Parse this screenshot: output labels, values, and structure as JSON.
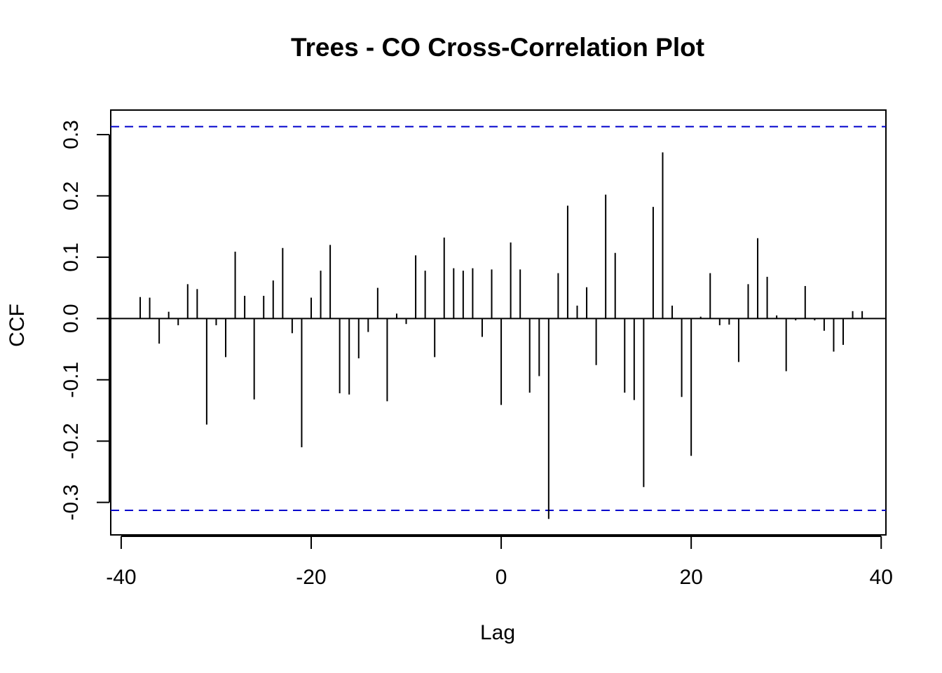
{
  "chart_data": {
    "type": "bar",
    "title": "Trees - CO Cross-Correlation Plot",
    "xlabel": "Lag",
    "ylabel": "CCF",
    "xlim": [
      -41.1,
      40.5
    ],
    "ylim": [
      -0.353,
      0.34
    ],
    "x_ticks": [
      -40,
      -20,
      0,
      20,
      40
    ],
    "x_tick_labels": [
      "-40",
      "-20",
      "0",
      "20",
      "40"
    ],
    "y_ticks": [
      -0.3,
      -0.2,
      -0.1,
      0.0,
      0.1,
      0.2,
      0.3
    ],
    "y_tick_labels": [
      "-0.3",
      "-0.2",
      "-0.1",
      "0.0",
      "0.1",
      "0.2",
      "0.3"
    ],
    "confidence_bound": 0.313,
    "colors": {
      "bars": "#000000",
      "confidence_lines": "#0000cc",
      "zero_line": "#000000"
    },
    "x": [
      -38,
      -37,
      -36,
      -35,
      -34,
      -33,
      -32,
      -31,
      -30,
      -29,
      -28,
      -27,
      -26,
      -25,
      -24,
      -23,
      -22,
      -21,
      -20,
      -19,
      -18,
      -17,
      -16,
      -15,
      -14,
      -13,
      -12,
      -11,
      -10,
      -9,
      -8,
      -7,
      -6,
      -5,
      -4,
      -3,
      -2,
      -1,
      0,
      1,
      2,
      3,
      4,
      5,
      6,
      7,
      8,
      9,
      10,
      11,
      12,
      13,
      14,
      15,
      16,
      17,
      18,
      19,
      20,
      21,
      22,
      23,
      24,
      25,
      26,
      27,
      28,
      29,
      30,
      31,
      32,
      33,
      34,
      35,
      36,
      37,
      38
    ],
    "values": [
      0.035,
      0.034,
      -0.041,
      0.011,
      -0.011,
      0.056,
      0.048,
      -0.173,
      -0.011,
      -0.063,
      0.109,
      0.037,
      -0.132,
      0.037,
      0.062,
      0.115,
      -0.024,
      -0.21,
      0.034,
      0.078,
      0.12,
      -0.122,
      -0.124,
      -0.065,
      -0.022,
      0.05,
      -0.135,
      0.008,
      -0.009,
      0.103,
      0.078,
      -0.063,
      0.132,
      0.082,
      0.078,
      0.082,
      -0.03,
      0.08,
      -0.141,
      0.124,
      0.08,
      -0.121,
      -0.094,
      -0.327,
      0.074,
      0.184,
      0.021,
      0.051,
      -0.076,
      0.202,
      0.107,
      -0.121,
      -0.133,
      -0.275,
      0.182,
      0.271,
      0.021,
      -0.128,
      -0.224,
      0.003,
      0.074,
      -0.011,
      -0.01,
      -0.071,
      0.056,
      0.131,
      0.068,
      0.005,
      -0.086,
      -0.003,
      0.053,
      -0.003,
      -0.02,
      -0.054,
      -0.043,
      0.012,
      0.012
    ]
  }
}
